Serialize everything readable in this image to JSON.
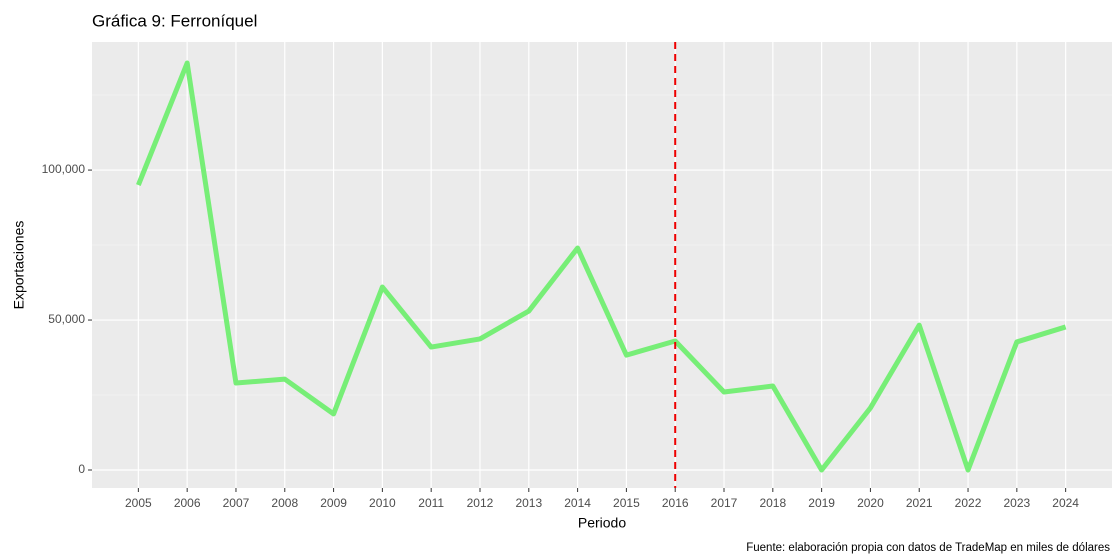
{
  "chart_data": {
    "type": "line",
    "title": "Gráfica 9: Ferroníquel",
    "x_label": "Periodo",
    "y_label": "Exportaciones",
    "caption": "Fuente: elaboración propia con datos de TradeMap en miles de dólares",
    "x": [
      2005,
      2006,
      2007,
      2008,
      2009,
      2010,
      2011,
      2012,
      2013,
      2014,
      2015,
      2016,
      2017,
      2018,
      2019,
      2020,
      2021,
      2022,
      2023,
      2024
    ],
    "series": [
      {
        "name": "Exportaciones",
        "color": "#77ee77",
        "values": [
          95000,
          135700,
          29000,
          30300,
          18700,
          61000,
          41000,
          43700,
          53000,
          74000,
          38300,
          43000,
          26000,
          28000,
          0,
          20700,
          48300,
          0,
          42700,
          47700
        ]
      }
    ],
    "xlim": [
      2004.05,
      2024.95
    ],
    "xticks": [
      2005,
      2006,
      2007,
      2008,
      2009,
      2010,
      2011,
      2012,
      2013,
      2014,
      2015,
      2016,
      2017,
      2018,
      2019,
      2020,
      2021,
      2022,
      2023,
      2024
    ],
    "ylim": [
      -6000,
      142700
    ],
    "yticks": [
      0,
      {
        "value": 50000,
        "label": "50,000"
      },
      {
        "value": 100000,
        "label": "100,000"
      }
    ],
    "grid": true,
    "vline": {
      "x": 2016,
      "color": "#ee0000"
    }
  }
}
